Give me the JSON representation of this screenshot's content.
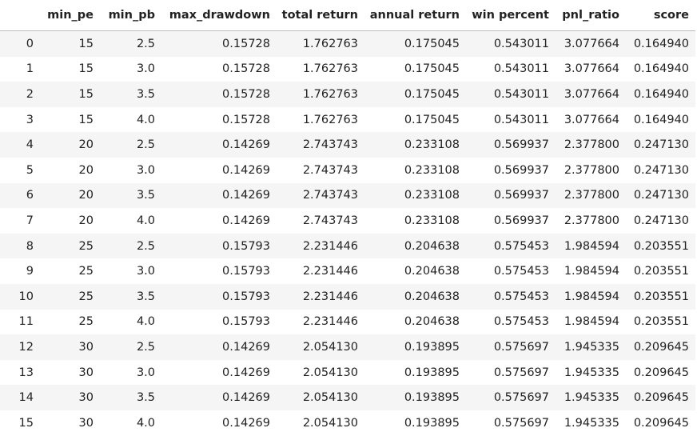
{
  "table": {
    "columns": [
      "min_pe",
      "min_pb",
      "max_drawdown",
      "total return",
      "annual return",
      "win percent",
      "pnl_ratio",
      "score"
    ],
    "index": [
      "0",
      "1",
      "2",
      "3",
      "4",
      "5",
      "6",
      "7",
      "8",
      "9",
      "10",
      "11",
      "12",
      "13",
      "14",
      "15"
    ],
    "rows": [
      [
        "15",
        "2.5",
        "0.15728",
        "1.762763",
        "0.175045",
        "0.543011",
        "3.077664",
        "0.164940"
      ],
      [
        "15",
        "3.0",
        "0.15728",
        "1.762763",
        "0.175045",
        "0.543011",
        "3.077664",
        "0.164940"
      ],
      [
        "15",
        "3.5",
        "0.15728",
        "1.762763",
        "0.175045",
        "0.543011",
        "3.077664",
        "0.164940"
      ],
      [
        "15",
        "4.0",
        "0.15728",
        "1.762763",
        "0.175045",
        "0.543011",
        "3.077664",
        "0.164940"
      ],
      [
        "20",
        "2.5",
        "0.14269",
        "2.743743",
        "0.233108",
        "0.569937",
        "2.377800",
        "0.247130"
      ],
      [
        "20",
        "3.0",
        "0.14269",
        "2.743743",
        "0.233108",
        "0.569937",
        "2.377800",
        "0.247130"
      ],
      [
        "20",
        "3.5",
        "0.14269",
        "2.743743",
        "0.233108",
        "0.569937",
        "2.377800",
        "0.247130"
      ],
      [
        "20",
        "4.0",
        "0.14269",
        "2.743743",
        "0.233108",
        "0.569937",
        "2.377800",
        "0.247130"
      ],
      [
        "25",
        "2.5",
        "0.15793",
        "2.231446",
        "0.204638",
        "0.575453",
        "1.984594",
        "0.203551"
      ],
      [
        "25",
        "3.0",
        "0.15793",
        "2.231446",
        "0.204638",
        "0.575453",
        "1.984594",
        "0.203551"
      ],
      [
        "25",
        "3.5",
        "0.15793",
        "2.231446",
        "0.204638",
        "0.575453",
        "1.984594",
        "0.203551"
      ],
      [
        "25",
        "4.0",
        "0.15793",
        "2.231446",
        "0.204638",
        "0.575453",
        "1.984594",
        "0.203551"
      ],
      [
        "30",
        "2.5",
        "0.14269",
        "2.054130",
        "0.193895",
        "0.575697",
        "1.945335",
        "0.209645"
      ],
      [
        "30",
        "3.0",
        "0.14269",
        "2.054130",
        "0.193895",
        "0.575697",
        "1.945335",
        "0.209645"
      ],
      [
        "30",
        "3.5",
        "0.14269",
        "2.054130",
        "0.193895",
        "0.575697",
        "1.945335",
        "0.209645"
      ],
      [
        "30",
        "4.0",
        "0.14269",
        "2.054130",
        "0.193895",
        "0.575697",
        "1.945335",
        "0.209645"
      ]
    ]
  }
}
